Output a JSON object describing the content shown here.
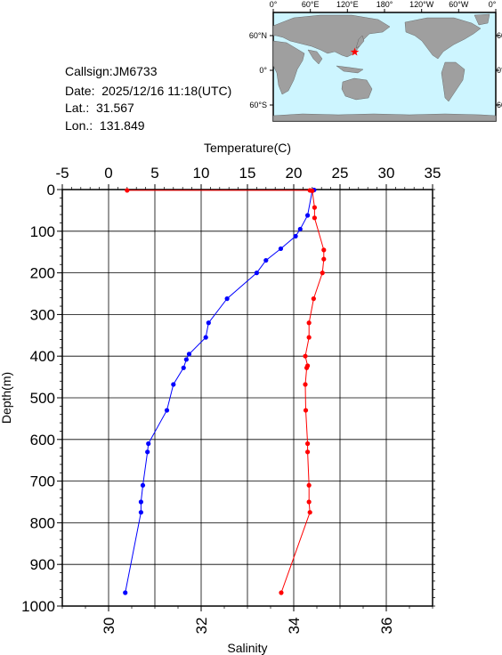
{
  "info": {
    "callsign": "Callsign:JM6733",
    "date": "Date:  2025/12/16 11:18(UTC)",
    "lat": "Lat.:  31.567",
    "lon": "Lon.:  131.849"
  },
  "map": {
    "lon_labels": [
      "0°",
      "60°E",
      "120°E",
      "180°",
      "120°W",
      "60°W",
      "0°"
    ],
    "lat_labels": [
      "60°N",
      "0°",
      "60°S"
    ],
    "marker_lat": 31.567,
    "marker_lon": 131.849,
    "ocean_color": "#cdf5ff",
    "land_color": "#9f9f9f",
    "marker_color": "#ff0000"
  },
  "chart_data": {
    "type": "line",
    "ylabel": "Depth(m)",
    "ylim": [
      0,
      1000
    ],
    "yticks": [
      0,
      100,
      200,
      300,
      400,
      500,
      600,
      700,
      800,
      900,
      1000
    ],
    "top_axis": {
      "label": "Temperature(C)",
      "range": [
        -5,
        35
      ],
      "ticks": [
        -5,
        0,
        5,
        10,
        15,
        20,
        25,
        30,
        35
      ]
    },
    "bottom_axis": {
      "label": "Salinity",
      "range": [
        29,
        37
      ],
      "ticks": [
        30,
        32,
        34,
        36
      ]
    },
    "grid": true,
    "series": [
      {
        "name": "Temperature",
        "axis": "top",
        "color": "#0000ff",
        "depth": [
          1,
          3,
          62,
          95,
          112,
          142,
          170,
          200,
          262,
          320,
          355,
          395,
          408,
          428,
          468,
          530,
          610,
          630,
          710,
          750,
          775,
          968
        ],
        "values": [
          22.2,
          22.0,
          21.5,
          20.7,
          20.2,
          18.6,
          17.0,
          16.0,
          12.8,
          10.8,
          10.5,
          8.7,
          8.4,
          8.1,
          7.0,
          6.3,
          4.3,
          4.2,
          3.7,
          3.5,
          3.5,
          1.8
        ]
      },
      {
        "name": "Salinity",
        "axis": "bottom",
        "color": "#ff0000",
        "depth": [
          2,
          2,
          3,
          43,
          68,
          145,
          167,
          200,
          262,
          320,
          355,
          400,
          423,
          428,
          468,
          530,
          610,
          630,
          710,
          750,
          775,
          968
        ],
        "values": [
          30.4,
          34.35,
          34.4,
          34.45,
          34.45,
          34.65,
          34.65,
          34.62,
          34.43,
          34.33,
          34.33,
          34.25,
          34.3,
          34.28,
          34.25,
          34.26,
          34.3,
          34.3,
          34.33,
          34.33,
          34.35,
          33.73
        ]
      }
    ]
  }
}
